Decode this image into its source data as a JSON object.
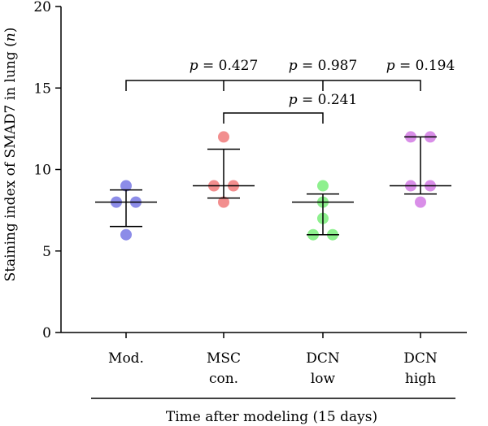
{
  "chart_data": {
    "type": "scatter",
    "ylabel_pre": "Staining index of SMAD7 in lung (",
    "ylabel_var": "n",
    "ylabel_post": ")",
    "xlabel": "Time after modeling (15 days)",
    "ylim": [
      0,
      20
    ],
    "yticks": [
      0,
      5,
      10,
      15,
      20
    ],
    "grid": false,
    "groups": [
      {
        "label_lines": [
          "Mod."
        ],
        "color": "#8c8ce8",
        "points": [
          9,
          8,
          8,
          6
        ],
        "mean": 8,
        "sd_low": 6.5,
        "sd_high": 8.75
      },
      {
        "label_lines": [
          "MSC",
          "con."
        ],
        "color": "#f28e8e",
        "points": [
          12,
          9,
          9,
          8
        ],
        "mean": 9,
        "sd_low": 8.25,
        "sd_high": 11.25
      },
      {
        "label_lines": [
          "DCN",
          "low"
        ],
        "color": "#8ef08e",
        "points": [
          9,
          8,
          7,
          6,
          6
        ],
        "mean": 8,
        "sd_low": 6,
        "sd_high": 8.5
      },
      {
        "label_lines": [
          "DCN",
          "high"
        ],
        "color": "#d98ee8",
        "points": [
          12,
          12,
          9,
          9,
          8
        ],
        "mean": 9,
        "sd_low": 8.5,
        "sd_high": 12
      }
    ],
    "comparisons": [
      {
        "p_symbol": "p",
        "p_text": " = 0.427"
      },
      {
        "p_symbol": "p",
        "p_text": " = 0.987"
      },
      {
        "p_symbol": "p",
        "p_text": " = 0.194"
      },
      {
        "p_symbol": "p",
        "p_text": " = 0.241"
      }
    ]
  }
}
